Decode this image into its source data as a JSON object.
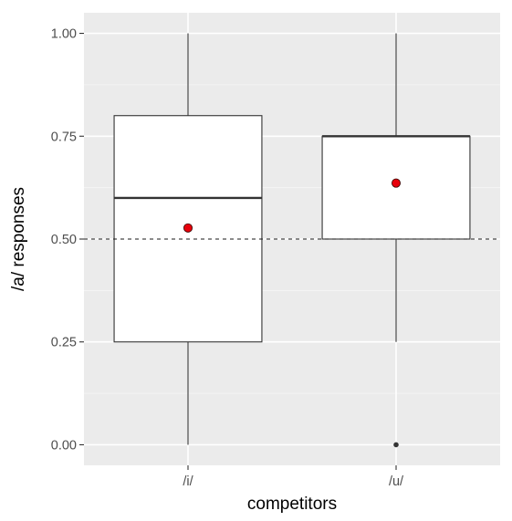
{
  "chart_data": {
    "type": "box",
    "title": "",
    "xlabel": "competitors",
    "ylabel": "/a/ responses",
    "categories": [
      "/i/",
      "/u/"
    ],
    "ylim": [
      -0.05,
      1.05
    ],
    "y_ticks": [
      0.0,
      0.25,
      0.5,
      0.75,
      1.0
    ],
    "y_tick_labels": [
      "0.00",
      "0.25",
      "0.50",
      "0.75",
      "1.00"
    ],
    "boxes": [
      {
        "category": "/i/",
        "min": 0.0,
        "q1": 0.25,
        "median": 0.6,
        "q3": 0.8,
        "max": 1.0,
        "mean": 0.527,
        "outliers": []
      },
      {
        "category": "/u/",
        "min": 0.25,
        "q1": 0.5,
        "median": 0.75,
        "q3": 0.75,
        "max": 1.0,
        "mean": 0.636,
        "outliers": [
          0.0
        ]
      }
    ],
    "reference_line": {
      "y": 0.5,
      "style": "dashed"
    },
    "grid": true,
    "colors": {
      "panel_background": "#ebebeb",
      "grid_major": "#ffffff",
      "grid_minor": "#f5f5f5",
      "box_fill": "#ffffff",
      "box_stroke": "#333333",
      "mean_point": "#e8000b",
      "outlier_point": "#333333",
      "axis_text": "#4d4d4d",
      "title_text": "#000000"
    }
  }
}
